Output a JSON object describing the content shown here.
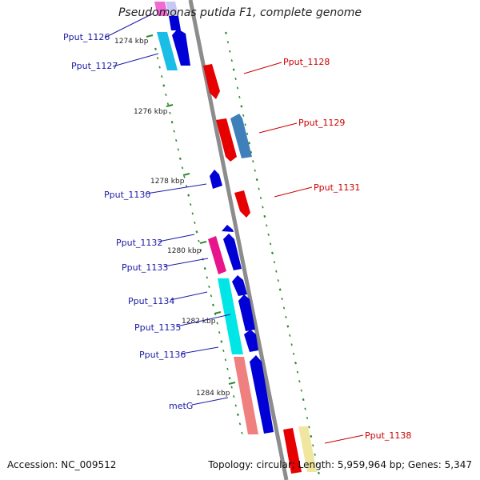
{
  "title": "Pseudomonas putida F1, complete genome",
  "footer": {
    "accession": "Accession: NC_009512",
    "summary": "Topology: circular; Length: 5,959,964 bp; Genes: 5,347"
  },
  "colors": {
    "backbone": "#8c8c8c",
    "tick": "#2e8b2e",
    "left_label": "#1a1aa6",
    "right_label": "#cc0000"
  },
  "kbp_labels": [
    "1274 kbp",
    "1276 kbp",
    "1278 kbp",
    "1280 kbp",
    "1282 kbp",
    "1284 kbp"
  ],
  "genes": {
    "left": [
      "Pput_1126",
      "Pput_1127",
      "Pput_1130",
      "Pput_1132",
      "Pput_1133",
      "Pput_1134",
      "Pput_1135",
      "Pput_1136",
      "metG"
    ],
    "right": [
      "Pput_1128",
      "Pput_1129",
      "Pput_1131",
      "Pput_1138"
    ]
  }
}
